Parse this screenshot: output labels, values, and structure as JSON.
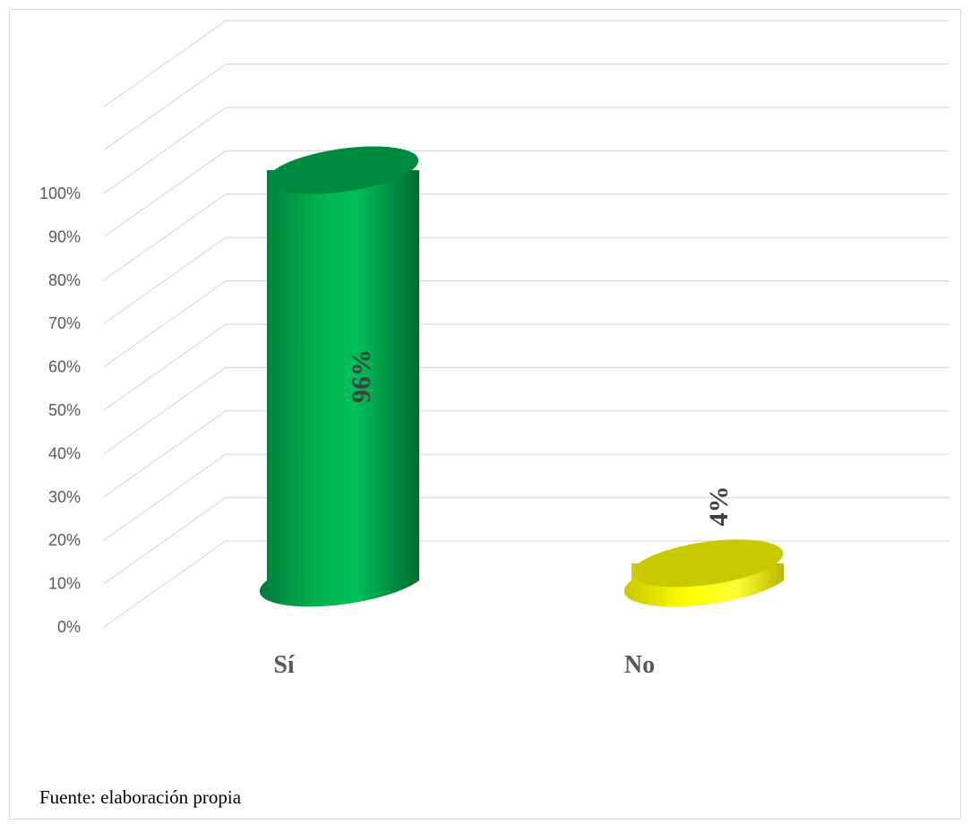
{
  "chart_data": {
    "type": "bar",
    "categories": [
      "Sí",
      "No"
    ],
    "values": [
      96,
      4
    ],
    "data_labels": [
      "96%",
      "4%"
    ],
    "ylim": [
      0,
      100
    ],
    "yticks": [
      "0%",
      "10%",
      "20%",
      "30%",
      "40%",
      "50%",
      "60%",
      "70%",
      "80%",
      "90%",
      "100%"
    ],
    "title": "",
    "xlabel": "",
    "ylabel": "",
    "grid": true,
    "legend": "none",
    "style": "3d-cylinder",
    "colors": {
      "Sí": "#00b050",
      "No": "#ffff00",
      "grid": "#d9d9d9"
    }
  },
  "source_text": "Fuente: elaboración propia"
}
